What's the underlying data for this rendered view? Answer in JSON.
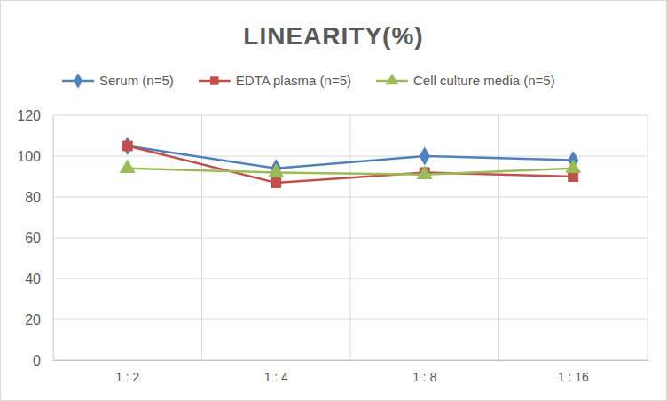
{
  "chart_data": {
    "type": "line",
    "title": "LINEARITY(%)",
    "categories": [
      "1 : 2",
      "1 : 4",
      "1 : 8",
      "1 : 16"
    ],
    "series": [
      {
        "name": "Serum (n=5)",
        "color": "#4f81bd",
        "marker": "diamond",
        "line_style": "solid",
        "values": [
          105,
          94,
          100,
          98
        ]
      },
      {
        "name": "EDTA plasma (n=5)",
        "color": "#c0504d",
        "marker": "square",
        "line_style": "solid",
        "values": [
          105,
          87,
          92,
          90
        ]
      },
      {
        "name": "Cell culture media (n=5)",
        "color": "#9bbb59",
        "marker": "triangle",
        "line_style": "solid",
        "values": [
          94,
          92,
          91,
          94
        ]
      }
    ],
    "ylim": [
      0,
      120
    ],
    "yticks": [
      0,
      20,
      40,
      60,
      80,
      100,
      120
    ],
    "grid": true,
    "legend": "top"
  }
}
